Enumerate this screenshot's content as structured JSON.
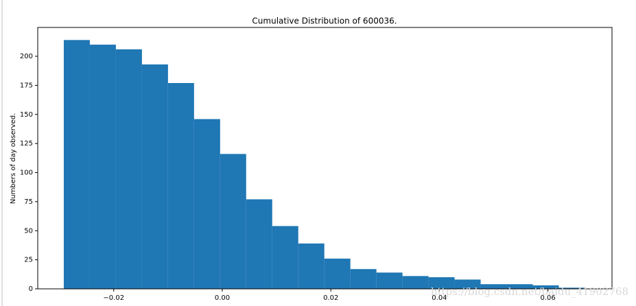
{
  "chart_data": {
    "type": "histogram",
    "title": "Cumulative Distribution of 600036.",
    "ylabel": "Numbers of day observed.",
    "annotation": "https://blog.csdn.net/baidu_41902768",
    "bins": [
      -0.0292,
      -0.0244,
      -0.0196,
      -0.0148,
      -0.01,
      -0.0052,
      -0.0004,
      0.0044,
      0.0092,
      0.014,
      0.0188,
      0.0236,
      0.0284,
      0.0332,
      0.038,
      0.0428,
      0.0476,
      0.0524,
      0.0572,
      0.062,
      0.0668
    ],
    "values": [
      214,
      210,
      206,
      193,
      177,
      146,
      116,
      77,
      54,
      39,
      26,
      17,
      14,
      11,
      10,
      8,
      4,
      4,
      3,
      1
    ],
    "color": "#1f77b4",
    "xlim": [
      -0.034,
      0.0718
    ],
    "ylim": [
      0,
      224.8
    ],
    "xticks": [
      {
        "value": -0.02,
        "label": "−0.02"
      },
      {
        "value": 0,
        "label": "0.00"
      },
      0.02,
      0.04,
      0.06
    ],
    "yticks": [
      0,
      25,
      50,
      75,
      100,
      125,
      150,
      175,
      200
    ]
  }
}
